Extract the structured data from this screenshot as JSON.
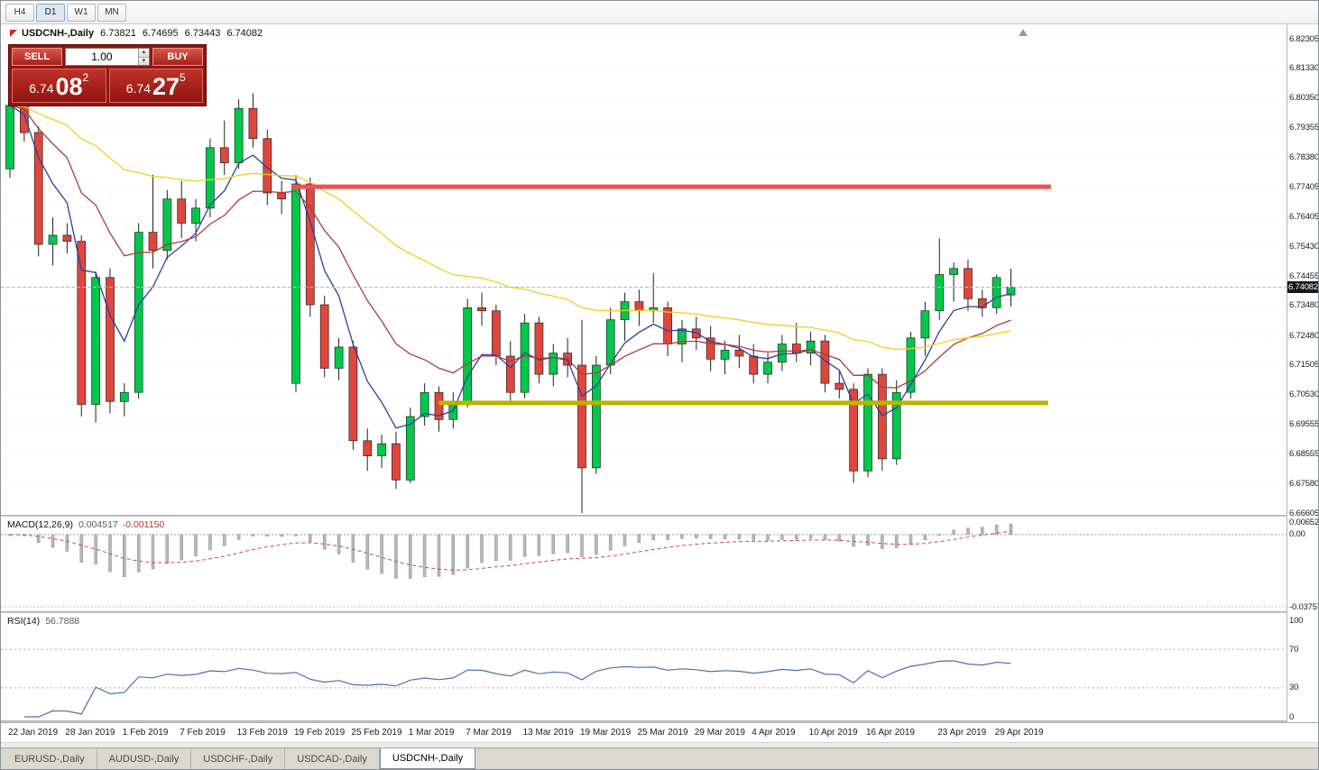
{
  "toolbar": {
    "timeframes": [
      {
        "label": "H4",
        "active": false
      },
      {
        "label": "D1",
        "active": true
      },
      {
        "label": "W1",
        "active": false
      },
      {
        "label": "MN",
        "active": false
      }
    ]
  },
  "chart": {
    "title": "USDCNH-,Daily",
    "ohlc": {
      "open": "6.73821",
      "high": "6.74695",
      "low": "6.73443",
      "close": "6.74082"
    },
    "current_price": "6.74082",
    "price_axis": [
      "6.82305",
      "6.81330",
      "6.80350",
      "6.79355",
      "6.78380",
      "6.77405",
      "6.76405",
      "6.75430",
      "6.74455",
      "6.73480",
      "6.72480",
      "6.71505",
      "6.70530",
      "6.69555",
      "6.68555",
      "6.67580",
      "6.66605"
    ]
  },
  "trade_panel": {
    "sell_label": "SELL",
    "buy_label": "BUY",
    "volume": "1.00",
    "sell_price": {
      "main": "6.74",
      "pips": "08",
      "frac": "2"
    },
    "buy_price": {
      "main": "6.74",
      "pips": "27",
      "frac": "5"
    }
  },
  "macd_panel": {
    "label": "MACD(12,26,9)",
    "value": "0.004517",
    "signal_value": "-0.001150",
    "axis": [
      "0.006522",
      "0.00",
      "-0.03757"
    ]
  },
  "rsi_panel": {
    "label": "RSI(14)",
    "value": "56.7888",
    "axis": [
      "100",
      "70",
      "30",
      "0"
    ]
  },
  "tabs": [
    {
      "label": "EURUSD-,Daily",
      "active": false
    },
    {
      "label": "AUDUSD-,Daily",
      "active": false
    },
    {
      "label": "USDCHF-,Daily",
      "active": false
    },
    {
      "label": "USDCAD-,Daily",
      "active": false
    },
    {
      "label": "USDCNH-,Daily",
      "active": true
    }
  ],
  "chart_data": {
    "type": "candlestick",
    "symbol": "USDCNH-",
    "timeframe": "Daily",
    "price_range": {
      "top": 6.82305,
      "bottom": 6.66605
    },
    "colors": {
      "up": "#00C84B",
      "down": "#E0463C",
      "outline": "#222222",
      "ma_fast": "#2c3f9f",
      "ma_mid": "#b23b3b",
      "ma_slow": "#f2cf1d",
      "hline_resistance": "#f05050",
      "hline_support": "#b9b400",
      "macd_hist": "#b8b8b8",
      "macd_signal": "#cf4848",
      "rsi_line": "#4a74a8",
      "current_price_line": "#b8b8b8",
      "grid": "#ececec"
    },
    "moving_averages": [
      {
        "period": 5,
        "method": "ema",
        "color": "#2c3f9f"
      },
      {
        "period": 13,
        "method": "ema",
        "color": "#b23b3b"
      },
      {
        "period": 40,
        "method": "ema",
        "color": "#f2cf1d"
      }
    ],
    "hlines": [
      {
        "price": 6.77405,
        "color": "#f05050",
        "stroke_width": 5,
        "start_index": 19.7,
        "end_index": 72.8,
        "role": "resistance"
      },
      {
        "price": 6.7025,
        "color": "#b9b400",
        "stroke_width": 5,
        "start_index": 30.0,
        "end_index": 72.6,
        "role": "support"
      }
    ],
    "macd": {
      "fast": 12,
      "slow": 26,
      "signal": 9,
      "range": {
        "max": 0.006522,
        "min": -0.03757
      }
    },
    "rsi": {
      "period": 14,
      "levels": [
        70,
        30
      ],
      "range": {
        "max": 100,
        "min": 0
      }
    },
    "time_labels": [
      {
        "label": "22 Jan 2019",
        "index": 0
      },
      {
        "label": "28 Jan 2019",
        "index": 4
      },
      {
        "label": "1 Feb 2019",
        "index": 8
      },
      {
        "label": "7 Feb 2019",
        "index": 12
      },
      {
        "label": "13 Feb 2019",
        "index": 16
      },
      {
        "label": "19 Feb 2019",
        "index": 20
      },
      {
        "label": "25 Feb 2019",
        "index": 24
      },
      {
        "label": "1 Mar 2019",
        "index": 28
      },
      {
        "label": "7 Mar 2019",
        "index": 32
      },
      {
        "label": "13 Mar 2019",
        "index": 36
      },
      {
        "label": "19 Mar 2019",
        "index": 40
      },
      {
        "label": "25 Mar 2019",
        "index": 44
      },
      {
        "label": "29 Mar 2019",
        "index": 48
      },
      {
        "label": "4 Apr 2019",
        "index": 52
      },
      {
        "label": "10 Apr 2019",
        "index": 56
      },
      {
        "label": "16 Apr 2019",
        "index": 60
      },
      {
        "label": "23 Apr 2019",
        "index": 65
      },
      {
        "label": "29 Apr 2019",
        "index": 69
      }
    ],
    "candles": [
      [
        6.78,
        6.804,
        6.777,
        6.801
      ],
      [
        6.801,
        6.806,
        6.789,
        6.792
      ],
      [
        6.792,
        6.794,
        6.751,
        6.755
      ],
      [
        6.755,
        6.764,
        6.748,
        6.758
      ],
      [
        6.758,
        6.762,
        6.752,
        6.756
      ],
      [
        6.756,
        6.758,
        6.698,
        6.702
      ],
      [
        6.702,
        6.746,
        6.696,
        6.744
      ],
      [
        6.744,
        6.747,
        6.699,
        6.703
      ],
      [
        6.703,
        6.709,
        6.698,
        6.706
      ],
      [
        6.706,
        6.762,
        6.704,
        6.759
      ],
      [
        6.759,
        6.778,
        6.747,
        6.753
      ],
      [
        6.753,
        6.773,
        6.75,
        6.77
      ],
      [
        6.77,
        6.776,
        6.757,
        6.762
      ],
      [
        6.762,
        6.77,
        6.756,
        6.767
      ],
      [
        6.767,
        6.79,
        6.764,
        6.787
      ],
      [
        6.787,
        6.796,
        6.778,
        6.782
      ],
      [
        6.782,
        6.803,
        6.78,
        6.8
      ],
      [
        6.8,
        6.805,
        6.787,
        6.79
      ],
      [
        6.79,
        6.793,
        6.768,
        6.772
      ],
      [
        6.772,
        6.776,
        6.765,
        6.77
      ],
      [
        6.709,
        6.778,
        6.706,
        6.775
      ],
      [
        6.775,
        6.777,
        6.731,
        6.735
      ],
      [
        6.735,
        6.738,
        6.711,
        6.714
      ],
      [
        6.714,
        6.724,
        6.71,
        6.721
      ],
      [
        6.721,
        6.723,
        6.687,
        6.69
      ],
      [
        6.69,
        6.694,
        6.68,
        6.685
      ],
      [
        6.685,
        6.692,
        6.681,
        6.689
      ],
      [
        6.689,
        6.693,
        6.674,
        6.677
      ],
      [
        6.677,
        6.701,
        6.676,
        6.698
      ],
      [
        6.698,
        6.709,
        6.695,
        6.706
      ],
      [
        6.706,
        6.708,
        6.693,
        6.697
      ],
      [
        6.697,
        6.706,
        6.694,
        6.703
      ],
      [
        6.703,
        6.737,
        6.701,
        6.734
      ],
      [
        6.734,
        6.739,
        6.728,
        6.733
      ],
      [
        6.733,
        6.735,
        6.715,
        6.718
      ],
      [
        6.718,
        6.723,
        6.702,
        6.706
      ],
      [
        6.706,
        6.732,
        6.704,
        6.729
      ],
      [
        6.729,
        6.731,
        6.709,
        6.712
      ],
      [
        6.712,
        6.722,
        6.708,
        6.719
      ],
      [
        6.719,
        6.724,
        6.711,
        6.715
      ],
      [
        6.715,
        6.73,
        6.6661,
        6.681
      ],
      [
        6.681,
        6.718,
        6.679,
        6.715
      ],
      [
        6.715,
        6.734,
        6.712,
        6.73
      ],
      [
        6.73,
        6.739,
        6.723,
        6.736
      ],
      [
        6.736,
        6.74,
        6.728,
        6.733
      ],
      [
        6.733,
        6.7455,
        6.729,
        6.734
      ],
      [
        6.734,
        6.736,
        6.718,
        6.722
      ],
      [
        6.722,
        6.73,
        6.716,
        6.727
      ],
      [
        6.727,
        6.731,
        6.72,
        6.724
      ],
      [
        6.724,
        6.728,
        6.713,
        6.717
      ],
      [
        6.717,
        6.723,
        6.712,
        6.72
      ],
      [
        6.72,
        6.725,
        6.714,
        6.718
      ],
      [
        6.718,
        6.722,
        6.709,
        6.712
      ],
      [
        6.712,
        6.719,
        6.709,
        6.716
      ],
      [
        6.716,
        6.725,
        6.713,
        6.722
      ],
      [
        6.722,
        6.729,
        6.716,
        6.719
      ],
      [
        6.719,
        6.726,
        6.715,
        6.723
      ],
      [
        6.723,
        6.725,
        6.706,
        6.709
      ],
      [
        6.709,
        6.713,
        6.704,
        6.707
      ],
      [
        6.707,
        6.709,
        6.676,
        6.68
      ],
      [
        6.68,
        6.714,
        6.678,
        6.712
      ],
      [
        6.712,
        6.714,
        6.68,
        6.684
      ],
      [
        6.684,
        6.71,
        6.682,
        6.706
      ],
      [
        6.706,
        6.726,
        6.704,
        6.724
      ],
      [
        6.724,
        6.736,
        6.718,
        6.733
      ],
      [
        6.733,
        6.757,
        6.73,
        6.745
      ],
      [
        6.745,
        6.749,
        6.736,
        6.747
      ],
      [
        6.747,
        6.75,
        6.733,
        6.737
      ],
      [
        6.737,
        6.74,
        6.731,
        6.734
      ],
      [
        6.734,
        6.745,
        6.732,
        6.744
      ],
      [
        6.73821,
        6.74695,
        6.73443,
        6.74082
      ]
    ]
  }
}
